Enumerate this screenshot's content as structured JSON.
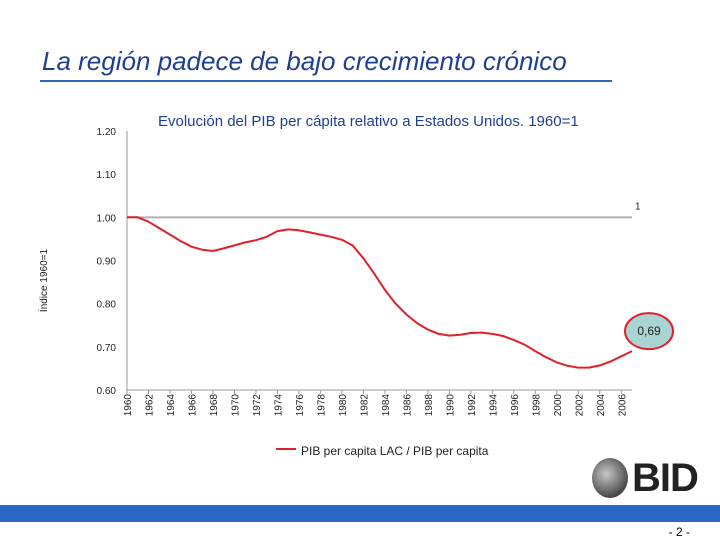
{
  "slide": {
    "title": "La región padece de bajo crecimiento crónico",
    "page_number": "- 2 -",
    "logo_text": "BID"
  },
  "colors": {
    "accent": "#2b67c5",
    "series": "#e0202a",
    "reference": "#b0b0b0",
    "callout_fill": "#a8d4d4"
  },
  "chart_data": {
    "type": "line",
    "title": "Evolución del PIB per cápita relativo a Estados Unidos. 1960=1",
    "ylabel": "Índice 1960=1",
    "xlabel": "",
    "ylim": [
      0.6,
      1.2
    ],
    "yticks": [
      "0.60",
      "0.70",
      "0.80",
      "0.90",
      "1.00",
      "1.10",
      "1.20"
    ],
    "x": [
      1960,
      1961,
      1962,
      1963,
      1964,
      1965,
      1966,
      1967,
      1968,
      1969,
      1970,
      1971,
      1972,
      1973,
      1974,
      1975,
      1976,
      1977,
      1978,
      1979,
      1980,
      1981,
      1982,
      1983,
      1984,
      1985,
      1986,
      1987,
      1988,
      1989,
      1990,
      1991,
      1992,
      1993,
      1994,
      1995,
      1996,
      1997,
      1998,
      1999,
      2000,
      2001,
      2002,
      2003,
      2004,
      2005,
      2006,
      2007
    ],
    "xticks": [
      "1960",
      "1962",
      "1964",
      "1966",
      "1968",
      "1970",
      "1972",
      "1974",
      "1976",
      "1978",
      "1980",
      "1982",
      "1984",
      "1986",
      "1988",
      "1990",
      "1992",
      "1994",
      "1996",
      "1998",
      "2000",
      "2002",
      "2004",
      "2006"
    ],
    "series": [
      {
        "name": "PIB per capita LAC / PIB per capita",
        "values": [
          1.0,
          1.0,
          0.99,
          0.975,
          0.96,
          0.945,
          0.932,
          0.925,
          0.922,
          0.928,
          0.935,
          0.942,
          0.947,
          0.955,
          0.968,
          0.972,
          0.97,
          0.965,
          0.96,
          0.955,
          0.948,
          0.935,
          0.905,
          0.87,
          0.832,
          0.8,
          0.775,
          0.755,
          0.74,
          0.73,
          0.726,
          0.728,
          0.732,
          0.733,
          0.73,
          0.725,
          0.716,
          0.705,
          0.69,
          0.676,
          0.664,
          0.656,
          0.652,
          0.652,
          0.657,
          0.666,
          0.678,
          0.69
        ]
      }
    ],
    "reference_line": {
      "value": 1.0,
      "label": "1"
    },
    "end_callout": "0,69"
  }
}
